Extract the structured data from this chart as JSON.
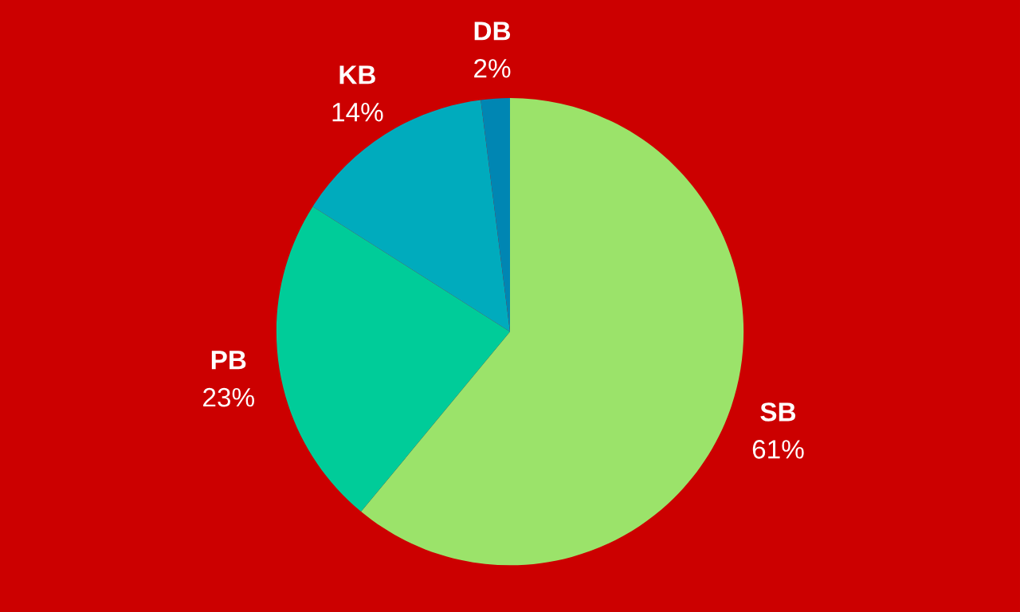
{
  "chart_data": {
    "type": "pie",
    "categories": [
      "SB",
      "PB",
      "KB",
      "DB"
    ],
    "values": [
      61,
      23,
      14,
      2
    ],
    "value_labels": [
      "61%",
      "23%",
      "14%",
      "2%"
    ],
    "colors": [
      "#9be36a",
      "#00cc99",
      "#00abbd",
      "#0086b3"
    ],
    "legend": false
  }
}
